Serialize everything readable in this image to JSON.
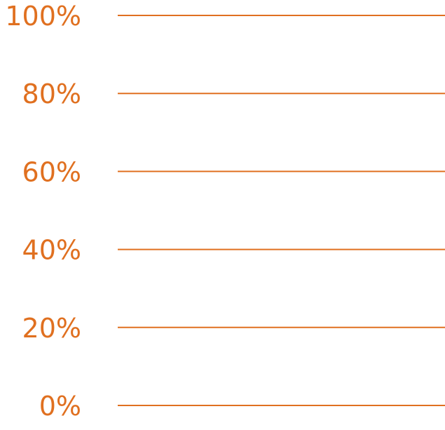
{
  "chart_data": {
    "type": "bar",
    "title": "",
    "xlabel": "",
    "ylabel": "",
    "ylim": [
      0,
      100
    ],
    "yticks": [
      0,
      20,
      40,
      60,
      80,
      100
    ],
    "ytick_labels": [
      "0%",
      "20%",
      "40%",
      "60%",
      "80%",
      "100%"
    ],
    "grid": true,
    "accent_color": "#E07020"
  }
}
